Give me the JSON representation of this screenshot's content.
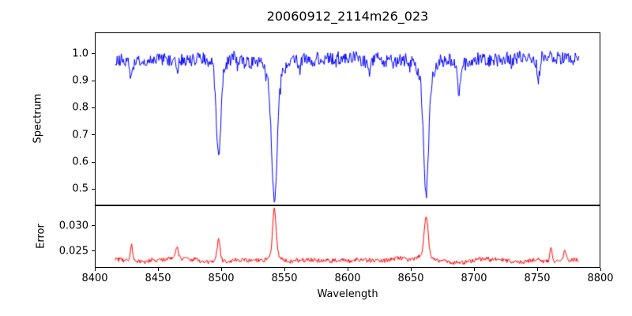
{
  "figure": {
    "background": "#ffffff"
  },
  "chart_data": [
    {
      "type": "line",
      "id": "spectrum",
      "title": "20060912_2114m26_023",
      "ylabel": "Spectrum",
      "line_color": "#0000ff",
      "xlim": [
        8400,
        8800
      ],
      "ylim": [
        0.44,
        1.078
      ],
      "yticks": [
        1.0,
        0.9,
        0.8,
        0.7,
        0.6,
        0.5
      ],
      "ytick_labels": [
        "1.0",
        "0.9",
        "0.8",
        "0.7",
        "0.6",
        "0.5"
      ],
      "x_start": 8416,
      "x_end": 8783,
      "x_step": 0.55,
      "continuum": 0.98,
      "noise_amp": 0.024,
      "seed": 20060912,
      "absorption_lines": [
        {
          "center": 8498.0,
          "depth": 0.3,
          "width": 1.7
        },
        {
          "center": 8498.0,
          "depth": 0.05,
          "width": 4.0
        },
        {
          "center": 8542.1,
          "depth": 0.42,
          "width": 2.0
        },
        {
          "center": 8542.1,
          "depth": 0.1,
          "width": 5.5
        },
        {
          "center": 8662.1,
          "depth": 0.4,
          "width": 1.9
        },
        {
          "center": 8662.1,
          "depth": 0.1,
          "width": 5.0
        },
        {
          "center": 8429.0,
          "depth": 0.07,
          "width": 1.0
        },
        {
          "center": 8465.0,
          "depth": 0.05,
          "width": 1.0
        },
        {
          "center": 8617.0,
          "depth": 0.05,
          "width": 1.1
        },
        {
          "center": 8688.0,
          "depth": 0.11,
          "width": 1.3
        },
        {
          "center": 8751.0,
          "depth": 0.08,
          "width": 1.2
        }
      ]
    },
    {
      "type": "line",
      "id": "error",
      "ylabel": "Error",
      "xlabel": "Wavelength",
      "line_color": "#ff0000",
      "xlim": [
        8400,
        8800
      ],
      "ylim": [
        0.0217,
        0.034
      ],
      "xticks": [
        8400,
        8450,
        8500,
        8550,
        8600,
        8650,
        8700,
        8750,
        8800
      ],
      "xtick_labels": [
        "8400",
        "8450",
        "8500",
        "8550",
        "8600",
        "8650",
        "8700",
        "8750",
        "8800"
      ],
      "yticks": [
        0.025,
        0.03
      ],
      "ytick_labels": [
        "0.025",
        "0.030"
      ],
      "x_start": 8416,
      "x_end": 8783,
      "x_step": 0.55,
      "baseline": 0.0233,
      "noise_amp": 0.0004,
      "seed": 2114,
      "error_peaks": [
        {
          "center": 8429.0,
          "height": 0.0033,
          "width": 0.9
        },
        {
          "center": 8465.0,
          "height": 0.0024,
          "width": 0.9
        },
        {
          "center": 8498.0,
          "height": 0.0045,
          "width": 1.2
        },
        {
          "center": 8542.1,
          "height": 0.0095,
          "width": 1.4
        },
        {
          "center": 8542.1,
          "height": 0.001,
          "width": 4.5
        },
        {
          "center": 8662.1,
          "height": 0.0075,
          "width": 1.5
        },
        {
          "center": 8662.1,
          "height": 0.001,
          "width": 4.0
        },
        {
          "center": 8761.0,
          "height": 0.0028,
          "width": 0.9
        },
        {
          "center": 8772.0,
          "height": 0.0024,
          "width": 0.9
        }
      ]
    }
  ]
}
